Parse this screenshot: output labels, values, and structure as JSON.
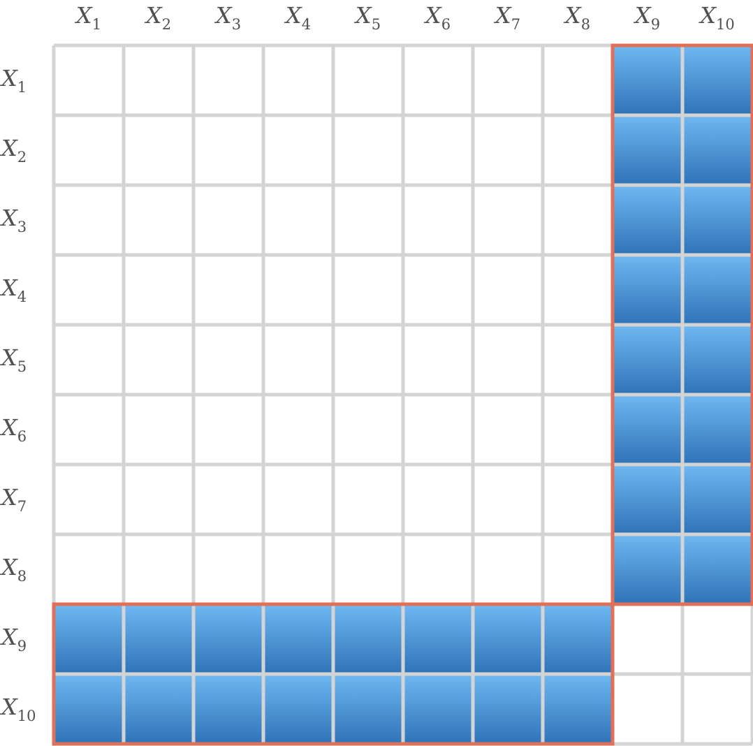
{
  "variables": [
    {
      "base": "X",
      "sub": "1"
    },
    {
      "base": "X",
      "sub": "2"
    },
    {
      "base": "X",
      "sub": "3"
    },
    {
      "base": "X",
      "sub": "4"
    },
    {
      "base": "X",
      "sub": "5"
    },
    {
      "base": "X",
      "sub": "6"
    },
    {
      "base": "X",
      "sub": "7"
    },
    {
      "base": "X",
      "sub": "8"
    },
    {
      "base": "X",
      "sub": "9"
    },
    {
      "base": "X",
      "sub": "10"
    }
  ],
  "highlighted_block_size": 2,
  "colors": {
    "grid_line": "#d4d4d4",
    "cell_blue_top": "#6fb8f2",
    "cell_blue_bottom": "#2f73b8",
    "highlight_border": "#e07058",
    "label_text": "#505050"
  }
}
